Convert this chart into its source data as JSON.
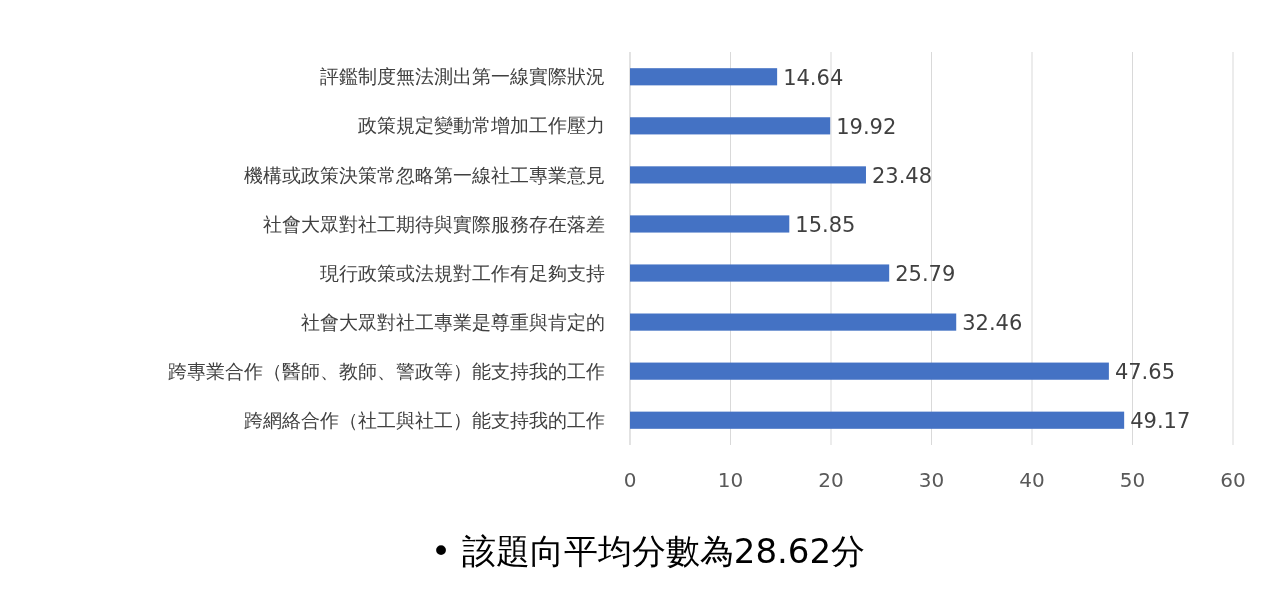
{
  "chart_data": {
    "type": "bar",
    "orientation": "horizontal",
    "categories": [
      "評鑑制度無法測出第一線實際狀況",
      "政策規定變動常增加工作壓力",
      "機構或政策決策常忽略第一線社工專業意見",
      "社會大眾對社工期待與實際服務存在落差",
      "現行政策或法規對工作有足夠支持",
      "社會大眾對社工專業是尊重與肯定的",
      "跨專業合作（醫師、教師、警政等）能支持我的工作",
      "跨網絡合作（社工與社工）能支持我的工作"
    ],
    "values": [
      14.64,
      19.92,
      23.48,
      15.85,
      25.79,
      32.46,
      47.65,
      49.17
    ],
    "color": "#4472c4",
    "data_labels": true,
    "xlim": [
      0,
      60
    ],
    "xticks": [
      0,
      10,
      20,
      30,
      40,
      50,
      60
    ],
    "grid": "x",
    "annotations": [
      "• 該題向平均分數為28.62分"
    ]
  }
}
